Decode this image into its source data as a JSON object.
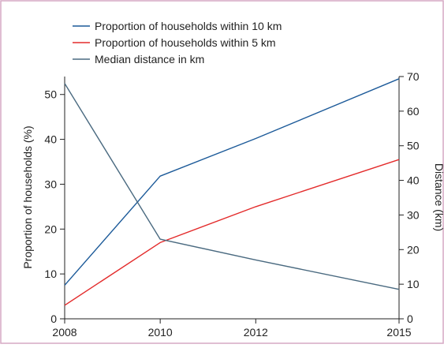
{
  "chart_data": {
    "type": "line",
    "x": [
      2008,
      2010,
      2012,
      2015
    ],
    "xticks": [
      "2008",
      "2010",
      "2012",
      "2015"
    ],
    "left_axis": {
      "label": "Proportion of households (%)",
      "ylim": [
        0,
        54
      ],
      "ticks": [
        "0",
        "10",
        "20",
        "30",
        "40",
        "50"
      ]
    },
    "right_axis": {
      "label": "Distance (km)",
      "ylim": [
        0,
        70
      ],
      "ticks": [
        "0",
        "10",
        "20",
        "30",
        "40",
        "50",
        "60",
        "70"
      ]
    },
    "series": [
      {
        "name": "Proportion of households within 10 km",
        "axis": "left",
        "color": "#1c5a99",
        "values": [
          7.5,
          31.8,
          40.2,
          53.5
        ]
      },
      {
        "name": "Proportion of households within 5 km",
        "axis": "left",
        "color": "#e32b2b",
        "values": [
          3.0,
          17.0,
          25.0,
          35.5
        ]
      },
      {
        "name": "Median distance in km",
        "axis": "right",
        "color": "#4a6a80",
        "values": [
          68.0,
          23.0,
          17.0,
          8.5
        ]
      }
    ],
    "grid": false,
    "legend_position": "top-left",
    "colors": {
      "frame": "#d6a8c4",
      "axis": "#222222"
    }
  }
}
